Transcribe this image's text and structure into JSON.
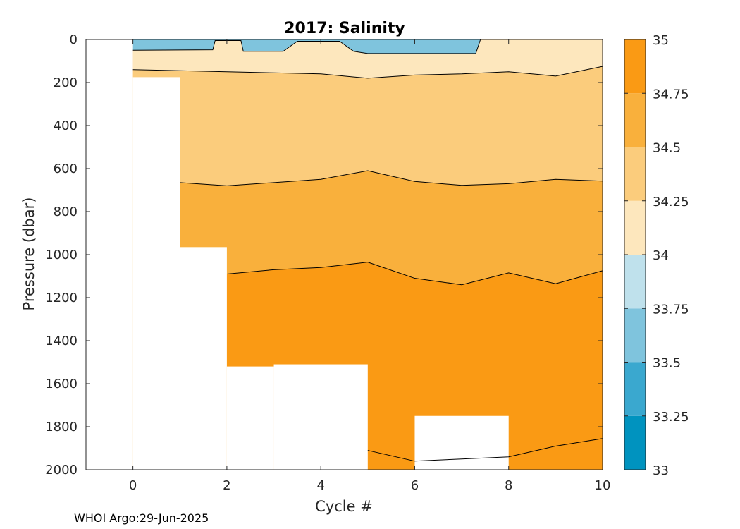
{
  "footer": {
    "text": "WHOI Argo:29-Jun-2025"
  },
  "chart_data": {
    "type": "heatmap",
    "subtype": "filled-contour",
    "title": "2017:  Salinity",
    "xlabel": "Cycle #",
    "ylabel": "Pressure (dbar)",
    "xlim": [
      -1,
      10
    ],
    "ylim": [
      2000,
      0
    ],
    "y_reversed": true,
    "x_ticks": [
      0,
      2,
      4,
      6,
      8,
      10
    ],
    "y_ticks": [
      0,
      200,
      400,
      600,
      800,
      1000,
      1200,
      1400,
      1600,
      1800,
      2000
    ],
    "colorbar": {
      "min": 33,
      "max": 35,
      "ticks": [
        33,
        33.25,
        33.5,
        33.75,
        34,
        34.25,
        34.5,
        34.75,
        35
      ],
      "tick_labels": [
        "33",
        "33.25",
        "33.5",
        "33.75",
        "34",
        "34.25",
        "34.5",
        "34.75",
        "35"
      ],
      "colors": [
        "#0093bf",
        "#3aa8cf",
        "#7fc4dd",
        "#bfe1ec",
        "#fde7bd",
        "#fbcc7c",
        "#f9b03c",
        "#fa9a14"
      ]
    },
    "profiles": [
      {
        "cycle": 0,
        "max_pressure": 175
      },
      {
        "cycle": 1,
        "max_pressure": 965
      },
      {
        "cycle": 2,
        "max_pressure": 1520
      },
      {
        "cycle": 3,
        "max_pressure": 1510
      },
      {
        "cycle": 4,
        "max_pressure": 1510
      },
      {
        "cycle": 5,
        "max_pressure": 2000
      },
      {
        "cycle": 6,
        "max_pressure": 1750
      },
      {
        "cycle": 7,
        "max_pressure": 1750
      },
      {
        "cycle": 8,
        "max_pressure": 2000
      },
      {
        "cycle": 9,
        "max_pressure": 2000
      },
      {
        "cycle": 10,
        "max_pressure": 2000
      }
    ],
    "contours": [
      {
        "level": 33.75,
        "x": [
          0,
          1.7,
          1.75,
          2.3,
          2.35,
          3.2,
          3.5,
          4.4,
          4.7,
          5.0,
          6.0,
          7.3,
          7.4
        ],
        "y": [
          50,
          48,
          5,
          5,
          55,
          55,
          8,
          8,
          55,
          65,
          65,
          65,
          0
        ]
      },
      {
        "level": 34.0,
        "x": [
          0,
          1,
          2,
          3,
          4,
          5,
          6,
          7,
          8,
          9,
          10
        ],
        "y": [
          140,
          145,
          150,
          155,
          160,
          180,
          165,
          160,
          150,
          170,
          125
        ]
      },
      {
        "level": 34.25,
        "x": [
          1,
          2,
          3,
          4,
          5,
          6,
          7,
          8,
          9,
          10
        ],
        "y": [
          665,
          680,
          665,
          650,
          610,
          660,
          678,
          670,
          650,
          658
        ]
      },
      {
        "level": 34.5,
        "x": [
          2,
          3,
          4,
          5,
          6,
          7,
          8,
          9,
          10
        ],
        "y": [
          1090,
          1070,
          1060,
          1035,
          1110,
          1140,
          1085,
          1135,
          1075
        ]
      },
      {
        "level": 34.75,
        "x": [
          5,
          6,
          7,
          8,
          9,
          10
        ],
        "y": [
          1910,
          1960,
          1950,
          1940,
          1890,
          1855
        ]
      }
    ]
  }
}
